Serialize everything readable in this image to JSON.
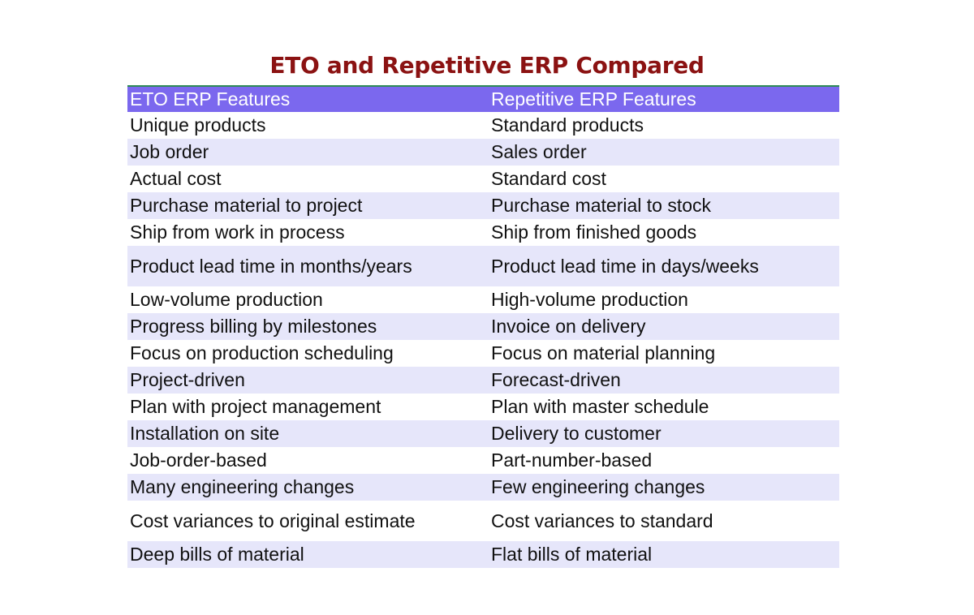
{
  "title": "ETO and Repetitive ERP Compared",
  "colors": {
    "title": "#8b1212",
    "header_bg": "#7b68ee",
    "header_text": "#ffffff",
    "alt_row_bg": "#e6e6fa",
    "rule": "#2e8b57"
  },
  "table": {
    "headers": [
      "ETO ERP Features",
      "Repetitive ERP Features"
    ],
    "rows": [
      [
        "Unique products",
        "Standard products"
      ],
      [
        "Job order",
        "Sales order"
      ],
      [
        "Actual cost",
        "Standard cost"
      ],
      [
        "Purchase material to project",
        "Purchase material to stock"
      ],
      [
        "Ship from work in process",
        "Ship from finished goods"
      ],
      [
        "Product lead time in months/years",
        "Product lead time in days/weeks"
      ],
      [
        "Low-volume production",
        "High-volume production"
      ],
      [
        "Progress billing by milestones",
        "Invoice on delivery"
      ],
      [
        "Focus on production scheduling",
        "Focus on material planning"
      ],
      [
        "Project-driven",
        "Forecast-driven"
      ],
      [
        "Plan with project management",
        "Plan with master schedule"
      ],
      [
        "Installation on site",
        "Delivery to customer"
      ],
      [
        "Job-order-based",
        "Part-number-based"
      ],
      [
        "Many engineering changes",
        "Few engineering changes"
      ],
      [
        "Cost variances to original estimate",
        "Cost variances to standard"
      ],
      [
        "Deep bills of material",
        "Flat bills of material"
      ]
    ]
  }
}
